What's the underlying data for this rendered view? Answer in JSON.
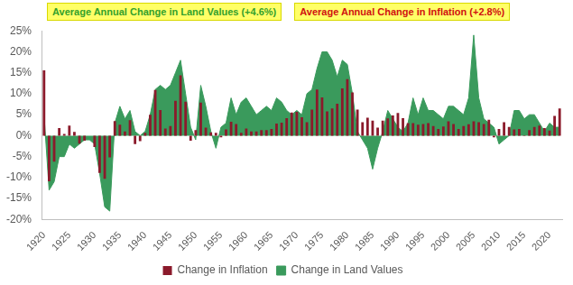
{
  "chart_data": {
    "type": "bar",
    "annotations": [
      "Average Annual Change in Land Values (+4.6%)",
      "Average Annual Change in Inflation (+2.8%)"
    ],
    "categories": [
      "1920",
      null,
      null,
      null,
      null,
      "1925",
      null,
      null,
      null,
      null,
      "1930",
      null,
      null,
      null,
      null,
      "1935",
      null,
      null,
      null,
      null,
      "1940",
      null,
      null,
      null,
      null,
      "1945",
      null,
      null,
      null,
      null,
      "1950",
      null,
      null,
      null,
      null,
      "1955",
      null,
      null,
      null,
      null,
      "1960",
      null,
      null,
      null,
      null,
      "1965",
      null,
      null,
      null,
      null,
      "1970",
      null,
      null,
      null,
      null,
      "1975",
      null,
      null,
      null,
      null,
      "1980",
      null,
      null,
      null,
      null,
      "1985",
      null,
      null,
      null,
      null,
      "1990",
      null,
      null,
      null,
      null,
      "1995",
      null,
      null,
      null,
      null,
      "2000",
      null,
      null,
      null,
      null,
      "2005",
      null,
      null,
      null,
      null,
      "2010",
      null,
      null,
      null,
      null,
      "2015",
      null,
      null,
      null,
      null,
      "2020",
      null,
      null
    ],
    "series": [
      {
        "name": "Change in Land Values",
        "type": "area",
        "color": "#3a9a5c",
        "values": [
          5,
          -13,
          -11,
          -5,
          -5,
          -2,
          -3,
          -2,
          -1,
          -1,
          -2,
          -9,
          -17,
          -18,
          3,
          7,
          4,
          6,
          1,
          0,
          1,
          5,
          11,
          12,
          11,
          12,
          15,
          18,
          10,
          2,
          -1,
          12,
          7,
          1,
          -3,
          2,
          3,
          9,
          5,
          8,
          9,
          7,
          5,
          6,
          7,
          6,
          9,
          8,
          6,
          5,
          6,
          5,
          10,
          11,
          16,
          20,
          20,
          18,
          14,
          18,
          17,
          10,
          1,
          -1,
          -3,
          -8,
          -3,
          1,
          6,
          4,
          2,
          1,
          3,
          9,
          5,
          9,
          6,
          6,
          5,
          4,
          7,
          7,
          6,
          5,
          9,
          24,
          9,
          4,
          3,
          2,
          -2,
          -1,
          0,
          6,
          6,
          4,
          5,
          5,
          3,
          1,
          3,
          2,
          2
        ]
      },
      {
        "name": "Change in Inflation",
        "type": "bar",
        "color": "#8b1a2b",
        "values": [
          15.6,
          -10.9,
          -6.2,
          1.8,
          0.4,
          2.4,
          0.9,
          -1.9,
          -1.2,
          0,
          -2.7,
          -8.9,
          -10.3,
          -5.2,
          3.5,
          2.6,
          1.0,
          3.7,
          -2.0,
          -1.3,
          0.7,
          5.0,
          10.9,
          6.1,
          1.7,
          2.3,
          8.3,
          14.4,
          8.1,
          -1.2,
          1.3,
          7.9,
          1.9,
          0.8,
          0.7,
          -0.4,
          1.5,
          3.3,
          2.8,
          0.7,
          1.7,
          1.0,
          1.0,
          1.3,
          1.3,
          1.6,
          2.9,
          3.1,
          4.2,
          5.5,
          5.7,
          4.4,
          3.2,
          6.2,
          11.0,
          9.1,
          5.8,
          6.5,
          7.6,
          11.3,
          13.5,
          10.3,
          6.2,
          3.2,
          4.3,
          3.6,
          1.9,
          3.6,
          4.1,
          4.8,
          5.4,
          4.2,
          3.0,
          3.0,
          2.6,
          2.8,
          3.0,
          2.3,
          1.6,
          2.2,
          3.4,
          2.8,
          1.6,
          2.3,
          2.7,
          3.4,
          3.2,
          2.8,
          3.8,
          -0.4,
          1.6,
          3.2,
          2.1,
          1.5,
          1.6,
          0.1,
          1.3,
          2.1,
          2.4,
          1.8,
          1.2,
          4.7,
          6.5
        ]
      }
    ],
    "ylim": [
      -20,
      25
    ],
    "yticks": [
      {
        "value": -20,
        "label": "-20%"
      },
      {
        "value": -15,
        "label": "-15%"
      },
      {
        "value": -10,
        "label": "-10%"
      },
      {
        "value": -5,
        "label": "-5%"
      },
      {
        "value": 0,
        "label": "0%"
      },
      {
        "value": 5,
        "label": "5%"
      },
      {
        "value": 10,
        "label": "10%"
      },
      {
        "value": 15,
        "label": "15%"
      },
      {
        "value": 20,
        "label": "20%"
      },
      {
        "value": 25,
        "label": "25%"
      }
    ],
    "grid": false,
    "legend": "bottom"
  }
}
